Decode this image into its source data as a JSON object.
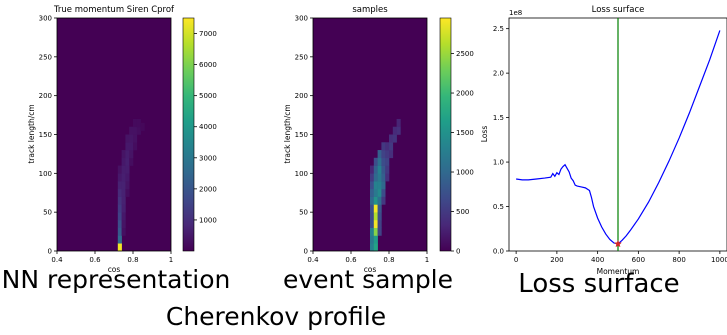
{
  "captions": {
    "nn": "NN representation",
    "event": "event sample",
    "loss": "Loss surface",
    "bottom": "Cherenkov profile"
  },
  "colors": {
    "viridis_dark": "#440154",
    "viridis_yellow": "#fde725",
    "loss_line": "#0000ff",
    "vline": "#008000",
    "marker": "#d62728"
  },
  "chart_data": [
    {
      "type": "heatmap",
      "title": "True momentum Siren Cprof",
      "xlabel": "cos",
      "ylabel": "track length/cm",
      "xlim": [
        0.4,
        1.0
      ],
      "ylim": [
        0,
        300
      ],
      "x_ticks": [
        "0.4",
        "0.6",
        "0.8",
        "1"
      ],
      "y_ticks": [
        "0",
        "50",
        "100",
        "150",
        "200",
        "250",
        "300"
      ],
      "colorbar_ticks": [
        "1000",
        "2000",
        "3000",
        "4000",
        "5000",
        "6000",
        "7000"
      ],
      "colorbar_range": [
        0,
        7500
      ],
      "grid_x_bins": 24,
      "grid_y_bins": 30,
      "cells": [
        [
          0.72,
          0.74,
          0,
          10,
          7400
        ],
        [
          0.72,
          0.74,
          10,
          20,
          2600
        ],
        [
          0.72,
          0.74,
          20,
          30,
          2100
        ],
        [
          0.72,
          0.74,
          30,
          40,
          1800
        ],
        [
          0.72,
          0.74,
          40,
          50,
          1500
        ],
        [
          0.72,
          0.74,
          50,
          60,
          1300
        ],
        [
          0.72,
          0.74,
          60,
          70,
          1100
        ],
        [
          0.72,
          0.74,
          70,
          80,
          900
        ],
        [
          0.72,
          0.74,
          80,
          90,
          700
        ],
        [
          0.72,
          0.74,
          90,
          100,
          500
        ],
        [
          0.72,
          0.74,
          100,
          110,
          350
        ],
        [
          0.74,
          0.76,
          20,
          30,
          300
        ],
        [
          0.74,
          0.76,
          30,
          40,
          400
        ],
        [
          0.74,
          0.76,
          40,
          50,
          500
        ],
        [
          0.74,
          0.76,
          50,
          60,
          650
        ],
        [
          0.74,
          0.76,
          60,
          70,
          700
        ],
        [
          0.74,
          0.76,
          70,
          80,
          700
        ],
        [
          0.74,
          0.76,
          80,
          90,
          700
        ],
        [
          0.74,
          0.76,
          90,
          100,
          650
        ],
        [
          0.74,
          0.76,
          100,
          110,
          600
        ],
        [
          0.74,
          0.76,
          110,
          120,
          500
        ],
        [
          0.74,
          0.76,
          120,
          130,
          400
        ],
        [
          0.76,
          0.78,
          70,
          80,
          250
        ],
        [
          0.76,
          0.78,
          80,
          90,
          400
        ],
        [
          0.76,
          0.78,
          90,
          100,
          500
        ],
        [
          0.76,
          0.78,
          100,
          110,
          600
        ],
        [
          0.76,
          0.78,
          110,
          120,
          650
        ],
        [
          0.76,
          0.78,
          120,
          130,
          600
        ],
        [
          0.76,
          0.78,
          130,
          140,
          500
        ],
        [
          0.76,
          0.78,
          140,
          150,
          400
        ],
        [
          0.78,
          0.8,
          110,
          120,
          250
        ],
        [
          0.78,
          0.8,
          120,
          130,
          400
        ],
        [
          0.78,
          0.8,
          130,
          140,
          500
        ],
        [
          0.78,
          0.8,
          140,
          150,
          450
        ],
        [
          0.78,
          0.8,
          150,
          160,
          350
        ],
        [
          0.8,
          0.82,
          130,
          140,
          250
        ],
        [
          0.8,
          0.82,
          140,
          150,
          350
        ],
        [
          0.8,
          0.82,
          150,
          160,
          350
        ],
        [
          0.8,
          0.82,
          160,
          170,
          200
        ],
        [
          0.82,
          0.84,
          150,
          160,
          250
        ],
        [
          0.82,
          0.84,
          160,
          170,
          200
        ],
        [
          0.84,
          0.86,
          155,
          165,
          150
        ]
      ]
    },
    {
      "type": "heatmap",
      "title": "samples",
      "xlabel": "cos",
      "ylabel": "track length/cm",
      "xlim": [
        0.4,
        1.0
      ],
      "ylim": [
        0,
        300
      ],
      "x_ticks": [
        "0.4",
        "0.6",
        "0.8",
        "1"
      ],
      "y_ticks": [
        "0",
        "50",
        "100",
        "150",
        "200",
        "250",
        "300"
      ],
      "colorbar_ticks": [
        "0",
        "500",
        "1000",
        "1500",
        "2000",
        "2500"
      ],
      "colorbar_range": [
        0,
        2950
      ],
      "grid_x_bins": 24,
      "grid_y_bins": 30,
      "cells": [
        [
          0.7,
          0.72,
          0,
          10,
          1300
        ],
        [
          0.7,
          0.72,
          10,
          20,
          1200
        ],
        [
          0.7,
          0.72,
          20,
          30,
          1300
        ],
        [
          0.7,
          0.72,
          30,
          40,
          700
        ],
        [
          0.7,
          0.72,
          40,
          50,
          650
        ],
        [
          0.7,
          0.72,
          50,
          60,
          700
        ],
        [
          0.7,
          0.72,
          60,
          70,
          1000
        ],
        [
          0.7,
          0.72,
          70,
          80,
          900
        ],
        [
          0.7,
          0.72,
          80,
          90,
          700
        ],
        [
          0.7,
          0.72,
          90,
          100,
          500
        ],
        [
          0.7,
          0.72,
          100,
          110,
          300
        ],
        [
          0.72,
          0.74,
          0,
          10,
          1700
        ],
        [
          0.72,
          0.74,
          10,
          20,
          1600
        ],
        [
          0.72,
          0.74,
          20,
          30,
          2400
        ],
        [
          0.72,
          0.74,
          30,
          40,
          2900
        ],
        [
          0.72,
          0.74,
          40,
          50,
          2600
        ],
        [
          0.72,
          0.74,
          50,
          60,
          2900
        ],
        [
          0.72,
          0.74,
          60,
          70,
          1500
        ],
        [
          0.72,
          0.74,
          70,
          80,
          1200
        ],
        [
          0.72,
          0.74,
          80,
          90,
          1300
        ],
        [
          0.72,
          0.74,
          90,
          100,
          1000
        ],
        [
          0.72,
          0.74,
          100,
          110,
          900
        ],
        [
          0.72,
          0.74,
          110,
          120,
          700
        ],
        [
          0.74,
          0.76,
          20,
          30,
          600
        ],
        [
          0.74,
          0.76,
          30,
          40,
          600
        ],
        [
          0.74,
          0.76,
          40,
          50,
          700
        ],
        [
          0.74,
          0.76,
          50,
          60,
          800
        ],
        [
          0.74,
          0.76,
          60,
          70,
          1100
        ],
        [
          0.74,
          0.76,
          70,
          80,
          1400
        ],
        [
          0.74,
          0.76,
          80,
          90,
          1300
        ],
        [
          0.74,
          0.76,
          90,
          100,
          1200
        ],
        [
          0.74,
          0.76,
          100,
          110,
          1300
        ],
        [
          0.74,
          0.76,
          110,
          120,
          1100
        ],
        [
          0.74,
          0.76,
          120,
          130,
          900
        ],
        [
          0.76,
          0.78,
          60,
          70,
          500
        ],
        [
          0.76,
          0.78,
          70,
          80,
          700
        ],
        [
          0.76,
          0.78,
          80,
          90,
          1000
        ],
        [
          0.76,
          0.78,
          90,
          100,
          900
        ],
        [
          0.76,
          0.78,
          100,
          110,
          800
        ],
        [
          0.76,
          0.78,
          110,
          120,
          700
        ],
        [
          0.76,
          0.78,
          120,
          130,
          600
        ],
        [
          0.76,
          0.78,
          130,
          140,
          500
        ],
        [
          0.78,
          0.8,
          90,
          100,
          400
        ],
        [
          0.78,
          0.8,
          100,
          110,
          500
        ],
        [
          0.78,
          0.8,
          110,
          120,
          600
        ],
        [
          0.78,
          0.8,
          120,
          130,
          500
        ],
        [
          0.78,
          0.8,
          130,
          140,
          400
        ],
        [
          0.8,
          0.82,
          120,
          130,
          400
        ],
        [
          0.8,
          0.82,
          130,
          140,
          500
        ],
        [
          0.8,
          0.82,
          140,
          150,
          400
        ],
        [
          0.82,
          0.84,
          140,
          150,
          450
        ],
        [
          0.82,
          0.84,
          150,
          160,
          350
        ],
        [
          0.84,
          0.86,
          150,
          160,
          400
        ],
        [
          0.84,
          0.86,
          160,
          170,
          300
        ]
      ]
    },
    {
      "type": "line",
      "title": "Loss surface",
      "xlabel": "Momentum",
      "ylabel": "Loss",
      "y_offset_label": "1e8",
      "xlim": [
        -35,
        1035
      ],
      "ylim": [
        0.0,
        2.62
      ],
      "x_ticks": [
        "0",
        "200",
        "400",
        "600",
        "800",
        "1000"
      ],
      "y_ticks": [
        "0.0",
        "0.5",
        "1.0",
        "1.5",
        "2.0",
        "2.5"
      ],
      "grid": false,
      "x": [
        0,
        30,
        60,
        100,
        140,
        170,
        180,
        190,
        200,
        210,
        220,
        230,
        240,
        250,
        260,
        270,
        280,
        290,
        300,
        320,
        340,
        360,
        370,
        380,
        400,
        420,
        440,
        460,
        480,
        500,
        520,
        540,
        560,
        600,
        650,
        700,
        750,
        800,
        850,
        900,
        950,
        1000
      ],
      "y": [
        0.81,
        0.8,
        0.8,
        0.81,
        0.82,
        0.83,
        0.87,
        0.84,
        0.88,
        0.86,
        0.92,
        0.95,
        0.97,
        0.93,
        0.89,
        0.82,
        0.79,
        0.74,
        0.73,
        0.72,
        0.71,
        0.68,
        0.6,
        0.5,
        0.37,
        0.27,
        0.19,
        0.13,
        0.09,
        0.08,
        0.12,
        0.17,
        0.23,
        0.36,
        0.55,
        0.77,
        1.01,
        1.27,
        1.55,
        1.85,
        2.15,
        2.48
      ],
      "vline_x": 500,
      "marker": {
        "x": 500,
        "y": 0.08
      }
    }
  ]
}
